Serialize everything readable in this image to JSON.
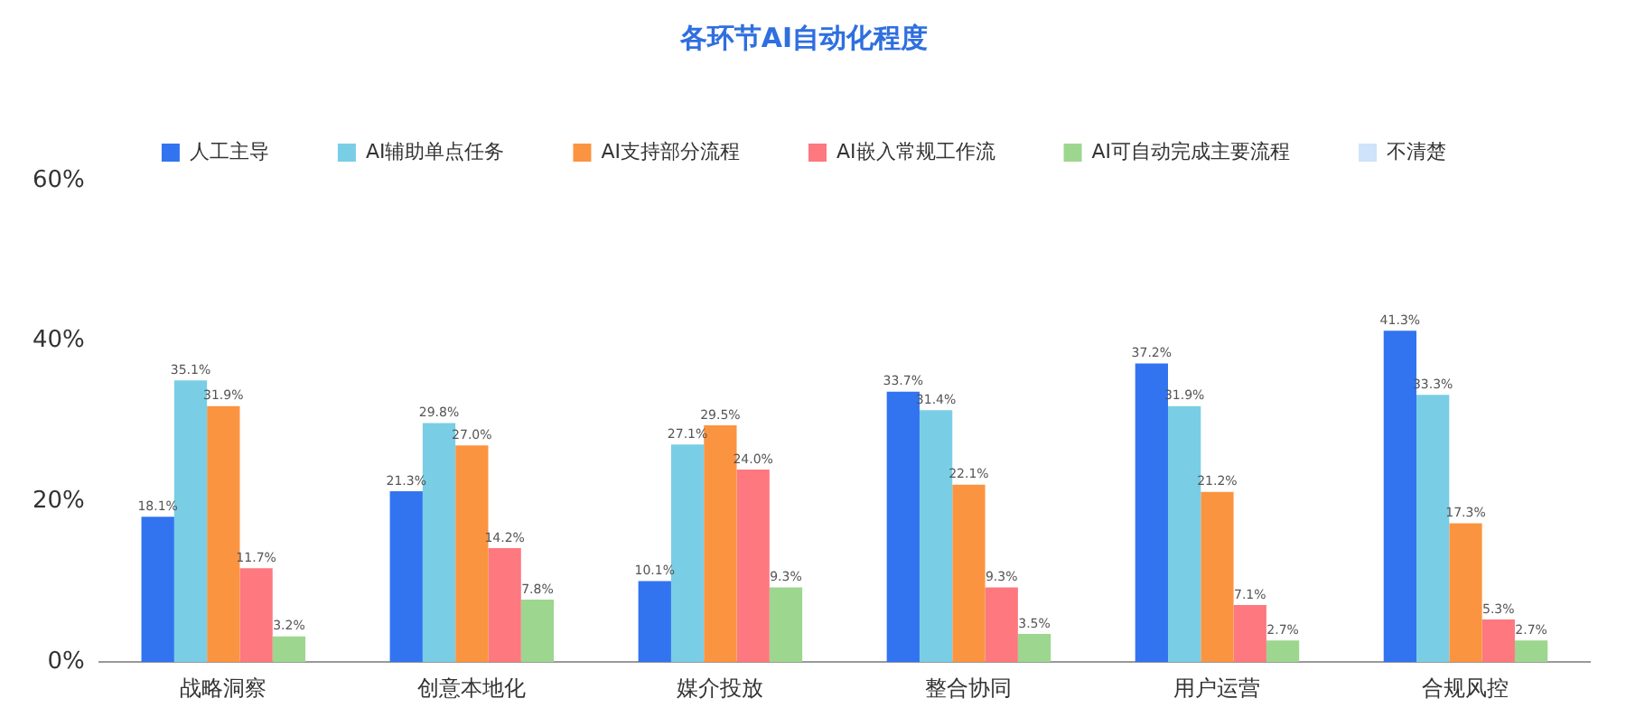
{
  "chart_data": {
    "type": "bar",
    "title": "各环节AI自动化程度",
    "categories": [
      "战略洞察",
      "创意本地化",
      "媒介投放",
      "整合协同",
      "用户运营",
      "合规风控"
    ],
    "series": [
      {
        "name": "人工主导",
        "color": "#3274f0",
        "values": [
          18.1,
          21.3,
          10.1,
          33.7,
          37.2,
          41.3
        ],
        "value_labels": [
          "18.1%",
          "21.3%",
          "10.1%",
          "33.7%",
          "37.2%",
          "41.3%"
        ]
      },
      {
        "name": "AI辅助单点任务",
        "color": "#79cee5",
        "values": [
          35.1,
          29.8,
          27.1,
          31.4,
          31.9,
          33.3
        ],
        "value_labels": [
          "35.1%",
          "29.8%",
          "27.1%",
          "31.4%",
          "31.9%",
          "33.3%"
        ]
      },
      {
        "name": "AI支持部分流程",
        "color": "#fb9440",
        "values": [
          31.9,
          27.0,
          29.5,
          22.1,
          21.2,
          17.3
        ],
        "value_labels": [
          "31.9%",
          "27.0%",
          "29.5%",
          "22.1%",
          "21.2%",
          "17.3%"
        ]
      },
      {
        "name": "AI嵌入常规工作流",
        "color": "#fd787f",
        "values": [
          11.7,
          14.2,
          24.0,
          9.3,
          7.1,
          5.3
        ],
        "value_labels": [
          "11.7%",
          "14.2%",
          "24.0%",
          "9.3%",
          "7.1%",
          "5.3%"
        ]
      },
      {
        "name": "AI可自动完成主要流程",
        "color": "#9dd68f",
        "values": [
          3.2,
          7.8,
          9.3,
          3.5,
          2.7,
          2.7
        ],
        "value_labels": [
          "3.2%",
          "7.8%",
          "9.3%",
          "3.5%",
          "2.7%",
          "2.7%"
        ]
      },
      {
        "name": "不清楚",
        "color": "#cfe3fa",
        "values": [
          null,
          null,
          null,
          null,
          null,
          null
        ]
      }
    ],
    "ylim": [
      0,
      60
    ],
    "yticks": [
      {
        "value": 0,
        "label": "0%"
      },
      {
        "value": 20,
        "label": "20%"
      },
      {
        "value": 40,
        "label": "40%"
      },
      {
        "value": 60,
        "label": "60%"
      }
    ],
    "grid": false,
    "legend": "top"
  }
}
